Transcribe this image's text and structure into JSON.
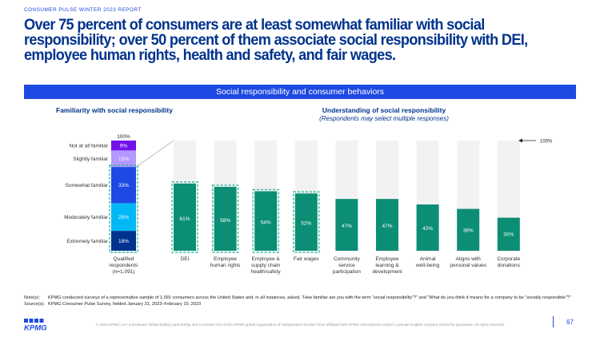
{
  "report_tag": "CONSUMER PULSE WINTER 2023 REPORT",
  "headline": "Over 75 percent of consumers are at least somewhat familiar with social responsibility; over 50 percent of them associate social responsibility with DEI, employee human rights, health and safety, and fair wages.",
  "banner": "Social responsibility and consumer behaviors",
  "left_title": "Familiarity with social responsibility",
  "right_title": "Understanding of social responsibility",
  "right_subtitle": "(Respondents may select multiple responses)",
  "colors": {
    "navy": "#00338D",
    "blue": "#1E49E2",
    "teal": "#0C8E74",
    "highlight": "#2FB99B",
    "purple": "#7213EA",
    "light_purple": "#B497FF",
    "sky": "#00B8F5",
    "bg_bar": "#F2F2F2"
  },
  "chart_data": [
    {
      "type": "bar",
      "stacked": true,
      "title": "Familiarity with social responsibility",
      "categories": [
        "Qualified respondents (n=1,091)"
      ],
      "total_label": "100%",
      "series": [
        {
          "name": "Not at all familiar",
          "values": [
            9
          ],
          "label": "9%",
          "color": "#7213EA"
        },
        {
          "name": "Slightly familiar",
          "values": [
            15
          ],
          "label": "15%",
          "color": "#B497FF"
        },
        {
          "name": "Somewhat familiar",
          "values": [
            33
          ],
          "label": "33%",
          "color": "#1E49E2"
        },
        {
          "name": "Moderately familiar",
          "values": [
            25
          ],
          "label": "25%",
          "color": "#00B8F5"
        },
        {
          "name": "Extremely familiar",
          "values": [
            18
          ],
          "label": "18%",
          "color": "#00338D"
        }
      ]
    },
    {
      "type": "bar",
      "title": "Understanding of social responsibility",
      "subtitle": "(Respondents may select multiple responses)",
      "reference_label": "100%",
      "ylim": [
        0,
        100
      ],
      "categories": [
        [
          "DEI"
        ],
        [
          "Employee",
          "human rights"
        ],
        [
          "Employee &",
          "supply chain",
          "health/safety"
        ],
        [
          "Fair wages"
        ],
        [
          "Community",
          "service",
          "participation"
        ],
        [
          "Employee",
          "learning &",
          "development"
        ],
        [
          "Animal",
          "well-being"
        ],
        [
          "Aligns with",
          "personal values"
        ],
        [
          "Corporate",
          "donations"
        ]
      ],
      "values": [
        61,
        58,
        54,
        52,
        47,
        47,
        42,
        38,
        30
      ],
      "labels": [
        "61%",
        "58%",
        "54%",
        "52%",
        "47%",
        "47%",
        "42%",
        "38%",
        "30%"
      ],
      "highlighted": [
        true,
        true,
        true,
        true,
        false,
        false,
        false,
        false,
        false
      ]
    }
  ],
  "notes_label": "Note(s):",
  "notes_text": "KPMG conducted surveys of a representative sample of 1,091 consumers across the United States and, in all instances, asked, “How familiar are you with the term “social responsibility”?” and “What do you think it means for a company to be “socially responsible”?”",
  "source_label": "Source(s):",
  "source_text": "KPMG Consumer Pulse Survey, fielded January 31, 2023–February 10, 2023",
  "copyright": "© 2023 KPMG LLP, a Delaware limited liability partnership and a member firm of the KPMG global organization of independent member firms affiliated with KPMG International Limited, a private English company limited by guarantee. All rights reserved.",
  "logo_text": "KPMG",
  "page_number": "67"
}
